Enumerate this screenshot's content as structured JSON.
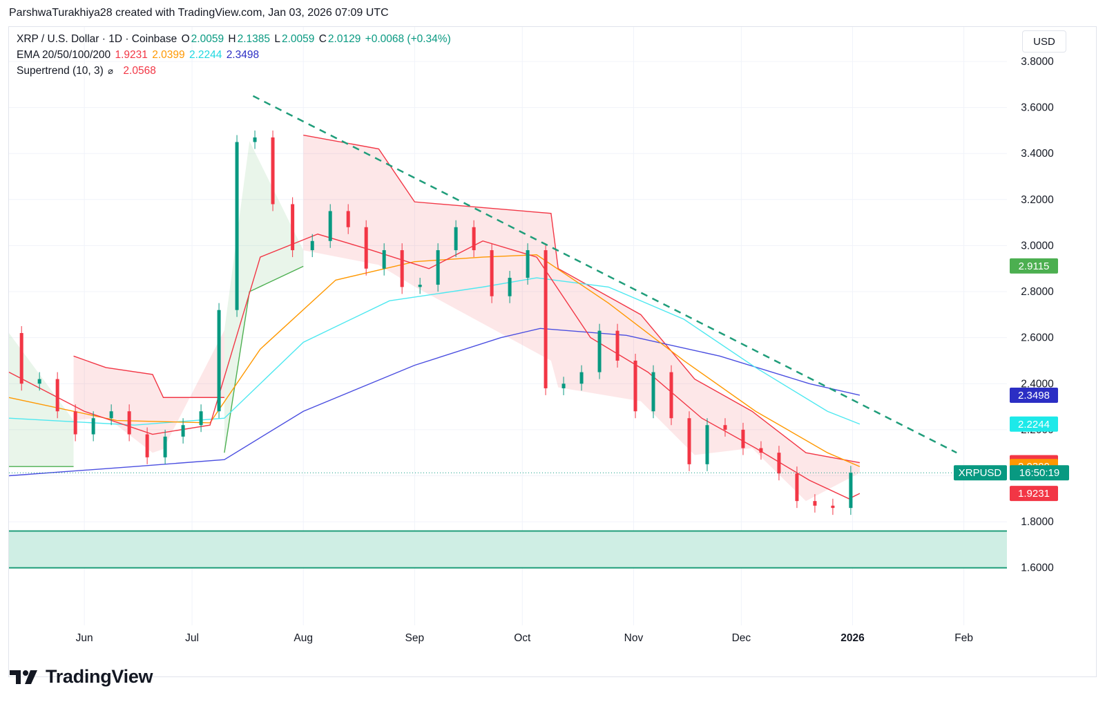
{
  "header": {
    "text": "ParshwaTurakhiya28 created with TradingView.com, Jan 03, 2026 07:09 UTC"
  },
  "legend": {
    "symbol_line": "XRP / U.S. Dollar · 1D · Coinbase",
    "o_label": "O",
    "o_value": "2.0059",
    "h_label": "H",
    "h_value": "2.1385",
    "l_label": "L",
    "l_value": "2.0059",
    "c_label": "C",
    "c_value": "2.0129",
    "change": "+0.0068 (+0.34%)",
    "ema_label": "EMA 20/50/100/200",
    "ema20": "1.9231",
    "ema50": "2.0399",
    "ema100": "2.2244",
    "ema200": "2.3498",
    "supertrend_label": "Supertrend (10, 3)",
    "supertrend_icon": "hidden-eye-icon",
    "supertrend_value": "2.0568"
  },
  "currency_button": "USD",
  "price_tags": [
    {
      "text": "2.9115",
      "value": 2.9115,
      "color": "#4caf50"
    },
    {
      "text": "2.3498",
      "value": 2.3498,
      "color": "#2b2ec4"
    },
    {
      "text": "2.2244",
      "value": 2.2244,
      "color": "#1de9e9"
    },
    {
      "text": "2.0568",
      "value": 2.0568,
      "color": "#f23645"
    },
    {
      "text": "2.0399",
      "value": 2.0399,
      "color": "#ff9800"
    },
    {
      "text": "1.9231",
      "value": 1.9231,
      "color": "#f23645"
    }
  ],
  "symbol_tag": {
    "symbol": "XRPUSD",
    "countdown": "16:50:19",
    "value": 2.0129,
    "color": "#089981"
  },
  "brand": "TradingView",
  "colors": {
    "up": "#089981",
    "down": "#f23645",
    "ema20": "#f23645",
    "ema50": "#ff9800",
    "ema100": "#4de8f0",
    "ema200": "#4a4ee0",
    "supertrend_up": "#4caf50",
    "supertrend_down": "#f23645",
    "trendline": "#1f9d7a",
    "zone": "#cfeee4",
    "zone_border": "#1f9d7a"
  },
  "chart_data": {
    "type": "candlestick",
    "symbol": "XRPUSD",
    "timeframe": "1D",
    "y_axis": {
      "range": [
        1.35,
        3.95
      ],
      "ticks": [
        "3.8000",
        "3.6000",
        "3.4000",
        "3.2000",
        "3.0000",
        "2.8000",
        "2.6000",
        "2.4000",
        "2.2000",
        "2.0000",
        "1.8000",
        "1.6000"
      ]
    },
    "x_axis": {
      "range": [
        "2025-05-11",
        "2026-02-13"
      ],
      "ticks": [
        {
          "date": "2025-06-01",
          "label": "Jun"
        },
        {
          "date": "2025-07-01",
          "label": "Jul"
        },
        {
          "date": "2025-08-01",
          "label": "Aug"
        },
        {
          "date": "2025-09-01",
          "label": "Sep"
        },
        {
          "date": "2025-10-01",
          "label": "Oct"
        },
        {
          "date": "2025-11-01",
          "label": "Nov"
        },
        {
          "date": "2025-12-01",
          "label": "Dec"
        },
        {
          "date": "2026-01-01",
          "label": "2026",
          "bold": true
        },
        {
          "date": "2026-02-01",
          "label": "Feb"
        }
      ]
    },
    "candles_close": [
      {
        "date": "2025-05-12",
        "close": 2.62
      },
      {
        "date": "2025-05-17",
        "close": 2.4
      },
      {
        "date": "2025-05-22",
        "close": 2.42
      },
      {
        "date": "2025-05-27",
        "close": 2.28
      },
      {
        "date": "2025-06-01",
        "close": 2.18
      },
      {
        "date": "2025-06-06",
        "close": 2.25
      },
      {
        "date": "2025-06-11",
        "close": 2.28
      },
      {
        "date": "2025-06-16",
        "close": 2.18
      },
      {
        "date": "2025-06-21",
        "close": 2.08
      },
      {
        "date": "2025-06-26",
        "close": 2.17
      },
      {
        "date": "2025-07-01",
        "close": 2.22
      },
      {
        "date": "2025-07-06",
        "close": 2.28
      },
      {
        "date": "2025-07-11",
        "close": 2.72
      },
      {
        "date": "2025-07-16",
        "close": 3.45
      },
      {
        "date": "2025-07-21",
        "close": 3.47
      },
      {
        "date": "2025-07-26",
        "close": 3.18
      },
      {
        "date": "2025-08-01",
        "close": 2.98
      },
      {
        "date": "2025-08-06",
        "close": 3.02
      },
      {
        "date": "2025-08-11",
        "close": 3.15
      },
      {
        "date": "2025-08-16",
        "close": 3.08
      },
      {
        "date": "2025-08-21",
        "close": 2.9
      },
      {
        "date": "2025-08-26",
        "close": 2.98
      },
      {
        "date": "2025-08-31",
        "close": 2.82
      },
      {
        "date": "2025-09-05",
        "close": 2.83
      },
      {
        "date": "2025-09-10",
        "close": 2.98
      },
      {
        "date": "2025-09-15",
        "close": 3.08
      },
      {
        "date": "2025-09-20",
        "close": 2.98
      },
      {
        "date": "2025-09-25",
        "close": 2.78
      },
      {
        "date": "2025-09-30",
        "close": 2.86
      },
      {
        "date": "2025-10-05",
        "close": 2.98
      },
      {
        "date": "2025-10-10",
        "close": 2.38
      },
      {
        "date": "2025-10-15",
        "close": 2.4
      },
      {
        "date": "2025-10-20",
        "close": 2.45
      },
      {
        "date": "2025-10-25",
        "close": 2.63
      },
      {
        "date": "2025-10-30",
        "close": 2.5
      },
      {
        "date": "2025-11-04",
        "close": 2.28
      },
      {
        "date": "2025-11-09",
        "close": 2.45
      },
      {
        "date": "2025-11-14",
        "close": 2.25
      },
      {
        "date": "2025-11-19",
        "close": 2.05
      },
      {
        "date": "2025-11-24",
        "close": 2.22
      },
      {
        "date": "2025-11-29",
        "close": 2.2
      },
      {
        "date": "2025-12-04",
        "close": 2.12
      },
      {
        "date": "2025-12-09",
        "close": 2.1
      },
      {
        "date": "2025-12-14",
        "close": 2.01
      },
      {
        "date": "2025-12-19",
        "close": 1.89
      },
      {
        "date": "2025-12-24",
        "close": 1.87
      },
      {
        "date": "2025-12-29",
        "close": 1.86
      },
      {
        "date": "2026-01-03",
        "close": 2.0129
      }
    ],
    "ema20": [
      {
        "date": "2025-05-11",
        "value": 2.45
      },
      {
        "date": "2025-06-01",
        "value": 2.28
      },
      {
        "date": "2025-06-20",
        "value": 2.18
      },
      {
        "date": "2025-07-06",
        "value": 2.22
      },
      {
        "date": "2025-07-20",
        "value": 2.95
      },
      {
        "date": "2025-08-05",
        "value": 3.05
      },
      {
        "date": "2025-08-20",
        "value": 2.98
      },
      {
        "date": "2025-09-05",
        "value": 2.9
      },
      {
        "date": "2025-09-20",
        "value": 3.02
      },
      {
        "date": "2025-10-05",
        "value": 2.95
      },
      {
        "date": "2025-10-20",
        "value": 2.6
      },
      {
        "date": "2025-11-05",
        "value": 2.45
      },
      {
        "date": "2025-11-20",
        "value": 2.25
      },
      {
        "date": "2025-12-05",
        "value": 2.12
      },
      {
        "date": "2025-12-20",
        "value": 1.98
      },
      {
        "date": "2025-12-31",
        "value": 1.9
      },
      {
        "date": "2026-01-03",
        "value": 1.9231
      }
    ],
    "ema50": [
      {
        "date": "2025-05-11",
        "value": 2.34
      },
      {
        "date": "2025-06-10",
        "value": 2.24
      },
      {
        "date": "2025-07-06",
        "value": 2.23
      },
      {
        "date": "2025-07-20",
        "value": 2.55
      },
      {
        "date": "2025-08-10",
        "value": 2.85
      },
      {
        "date": "2025-09-01",
        "value": 2.93
      },
      {
        "date": "2025-09-20",
        "value": 2.95
      },
      {
        "date": "2025-10-05",
        "value": 2.96
      },
      {
        "date": "2025-10-25",
        "value": 2.75
      },
      {
        "date": "2025-11-15",
        "value": 2.5
      },
      {
        "date": "2025-12-05",
        "value": 2.28
      },
      {
        "date": "2025-12-25",
        "value": 2.1
      },
      {
        "date": "2026-01-03",
        "value": 2.0399
      }
    ],
    "ema100": [
      {
        "date": "2025-05-11",
        "value": 2.25
      },
      {
        "date": "2025-06-15",
        "value": 2.22
      },
      {
        "date": "2025-07-10",
        "value": 2.25
      },
      {
        "date": "2025-08-01",
        "value": 2.58
      },
      {
        "date": "2025-08-25",
        "value": 2.76
      },
      {
        "date": "2025-09-20",
        "value": 2.82
      },
      {
        "date": "2025-10-05",
        "value": 2.86
      },
      {
        "date": "2025-10-25",
        "value": 2.82
      },
      {
        "date": "2025-11-15",
        "value": 2.68
      },
      {
        "date": "2025-12-05",
        "value": 2.47
      },
      {
        "date": "2025-12-25",
        "value": 2.28
      },
      {
        "date": "2026-01-03",
        "value": 2.2244
      }
    ],
    "ema200": [
      {
        "date": "2025-05-11",
        "value": 2.0
      },
      {
        "date": "2025-06-15",
        "value": 2.04
      },
      {
        "date": "2025-07-10",
        "value": 2.07
      },
      {
        "date": "2025-08-01",
        "value": 2.28
      },
      {
        "date": "2025-09-01",
        "value": 2.48
      },
      {
        "date": "2025-09-25",
        "value": 2.6
      },
      {
        "date": "2025-10-06",
        "value": 2.64
      },
      {
        "date": "2025-10-30",
        "value": 2.61
      },
      {
        "date": "2025-11-25",
        "value": 2.52
      },
      {
        "date": "2025-12-20",
        "value": 2.4
      },
      {
        "date": "2026-01-03",
        "value": 2.3498
      }
    ],
    "supertrend": [
      {
        "date": "2025-05-11",
        "value": 2.04,
        "dir": "up"
      },
      {
        "date": "2025-05-29",
        "value": 2.04,
        "dir": "up"
      },
      {
        "date": "2025-05-29",
        "value": 2.52,
        "dir": "down"
      },
      {
        "date": "2025-06-07",
        "value": 2.47,
        "dir": "down"
      },
      {
        "date": "2025-06-20",
        "value": 2.44,
        "dir": "down"
      },
      {
        "date": "2025-06-23",
        "value": 2.34,
        "dir": "down"
      },
      {
        "date": "2025-07-10",
        "value": 2.34,
        "dir": "down"
      },
      {
        "date": "2025-07-10",
        "value": 2.1,
        "dir": "up"
      },
      {
        "date": "2025-07-17",
        "value": 2.8,
        "dir": "up"
      },
      {
        "date": "2025-08-01",
        "value": 2.91,
        "dir": "up"
      },
      {
        "date": "2025-08-01",
        "value": 3.48,
        "dir": "down"
      },
      {
        "date": "2025-08-22",
        "value": 3.42,
        "dir": "down"
      },
      {
        "date": "2025-09-01",
        "value": 3.19,
        "dir": "down"
      },
      {
        "date": "2025-10-09",
        "value": 3.14,
        "dir": "down"
      },
      {
        "date": "2025-10-11",
        "value": 2.9,
        "dir": "down"
      },
      {
        "date": "2025-11-03",
        "value": 2.7,
        "dir": "down"
      },
      {
        "date": "2025-11-18",
        "value": 2.42,
        "dir": "down"
      },
      {
        "date": "2025-12-04",
        "value": 2.28,
        "dir": "down"
      },
      {
        "date": "2025-12-19",
        "value": 2.1,
        "dir": "down"
      },
      {
        "date": "2026-01-03",
        "value": 2.0568,
        "dir": "down"
      }
    ],
    "trendline": {
      "from": {
        "date": "2025-07-18",
        "value": 3.65
      },
      "to": {
        "date": "2026-01-30",
        "value": 2.1
      }
    },
    "support_zone": {
      "from": 1.6,
      "to": 1.76
    }
  }
}
